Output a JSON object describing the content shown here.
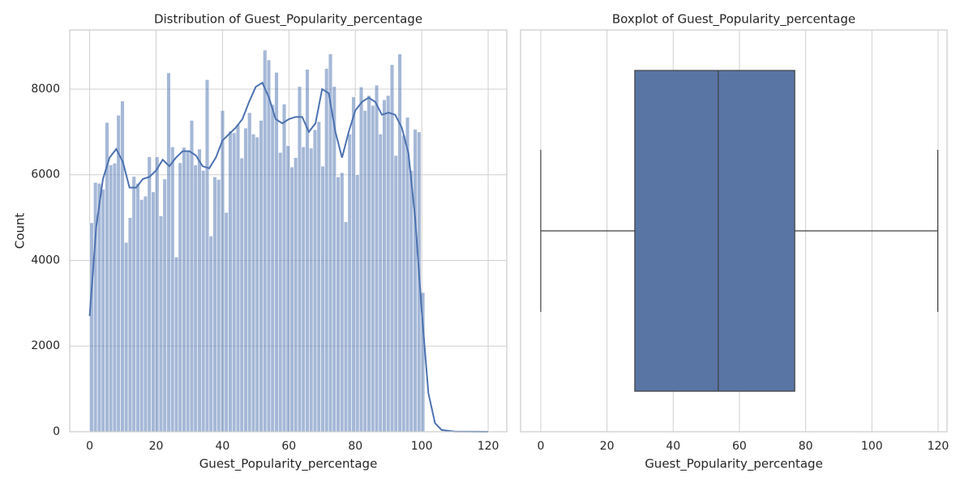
{
  "chart_data": [
    {
      "type": "histogram",
      "title": "Distribution of Guest_Popularity_percentage",
      "xlabel": "Guest_Popularity_percentage",
      "ylabel": "Count",
      "color": "#4c72b0",
      "bins": [
        0,
        1.16,
        2.32,
        3.48,
        4.64,
        5.8,
        6.96,
        8.12,
        9.28,
        10.44,
        11.6,
        12.76,
        13.92,
        15.08,
        16.24,
        17.4,
        18.56,
        19.72,
        20.88,
        22.04,
        23.2,
        24.36,
        25.52,
        26.68,
        27.84,
        29,
        30.16,
        31.32,
        32.48,
        33.64,
        34.8,
        35.96,
        37.12,
        38.28,
        39.44,
        40.6,
        41.76,
        42.92,
        44.08,
        45.24,
        46.4,
        47.56,
        48.72,
        49.88,
        51.04,
        52.2,
        53.36,
        54.52,
        55.68,
        56.84,
        58,
        59.16,
        60.32,
        61.48,
        62.64,
        63.8,
        64.96,
        66.12,
        67.28,
        68.44,
        69.6,
        70.76,
        71.92,
        73.08,
        74.24,
        75.4,
        76.56,
        77.72,
        78.88,
        80.04,
        81.2,
        82.36,
        83.52,
        84.68,
        85.84,
        87,
        88.16,
        89.32,
        90.48,
        91.64,
        92.8,
        93.96,
        95.12,
        96.28,
        97.44,
        98.6,
        99.76,
        100.92
      ],
      "values": [
        4880,
        5820,
        5800,
        5660,
        7220,
        6230,
        6270,
        7390,
        7720,
        4420,
        5000,
        5960,
        5800,
        5420,
        5500,
        6420,
        5600,
        6420,
        5040,
        5900,
        8380,
        6650,
        4080,
        6280,
        6640,
        6540,
        7270,
        6230,
        6600,
        6100,
        8220,
        4570,
        5950,
        5890,
        7500,
        5120,
        7020,
        6980,
        7170,
        6390,
        7090,
        7450,
        6950,
        6880,
        7270,
        8910,
        8680,
        7640,
        8390,
        6520,
        7650,
        6680,
        6180,
        6400,
        8060,
        6650,
        8460,
        6620,
        7050,
        7240,
        6200,
        8480,
        8820,
        8060,
        5950,
        6050,
        4900,
        6950,
        7820,
        6000,
        8050,
        7500,
        7850,
        7620,
        8090,
        6950,
        7750,
        7850,
        8570,
        6450,
        8820,
        6920,
        7340,
        6100,
        7060,
        7000,
        3250
      ],
      "kde": {
        "x": [
          0,
          2,
          4,
          6,
          8,
          10,
          12,
          14,
          16,
          18,
          20,
          22,
          24,
          26,
          28,
          30,
          32,
          34,
          36,
          38,
          40,
          42,
          44,
          46,
          48,
          50,
          52,
          54,
          56,
          58,
          60,
          62,
          64,
          66,
          68,
          70,
          72,
          74,
          76,
          78,
          80,
          82,
          84,
          86,
          88,
          90,
          92,
          94,
          96,
          98,
          100,
          102,
          104,
          106,
          110,
          120
        ],
        "values": [
          2700,
          4800,
          5900,
          6400,
          6600,
          6300,
          5700,
          5700,
          5900,
          5950,
          6100,
          6350,
          6200,
          6400,
          6550,
          6550,
          6450,
          6200,
          6150,
          6400,
          6800,
          6950,
          7100,
          7300,
          7700,
          8050,
          8150,
          7800,
          7300,
          7200,
          7300,
          7350,
          7350,
          7000,
          7200,
          8000,
          7900,
          7000,
          6400,
          7000,
          7500,
          7700,
          7800,
          7700,
          7400,
          7450,
          7400,
          7100,
          6500,
          5000,
          2800,
          900,
          200,
          40,
          5,
          0
        ]
      },
      "xlim": [
        -6,
        125.6
      ],
      "xticks": [
        0,
        20,
        40,
        60,
        80,
        100,
        120
      ],
      "ylim": [
        0,
        9380
      ],
      "yticks": [
        0,
        2000,
        4000,
        6000,
        8000
      ],
      "grid": true
    },
    {
      "type": "box",
      "title": "Boxplot of Guest_Popularity_percentage",
      "xlabel": "Guest_Popularity_percentage",
      "color": "#5975a4",
      "whisker_low": 0,
      "q1": 28.4,
      "median": 53.6,
      "q3": 76.7,
      "whisker_high": 119.9,
      "xlim": [
        -6.1,
        122.7
      ],
      "xticks": [
        0,
        20,
        40,
        60,
        80,
        100,
        120
      ],
      "grid": true
    }
  ]
}
